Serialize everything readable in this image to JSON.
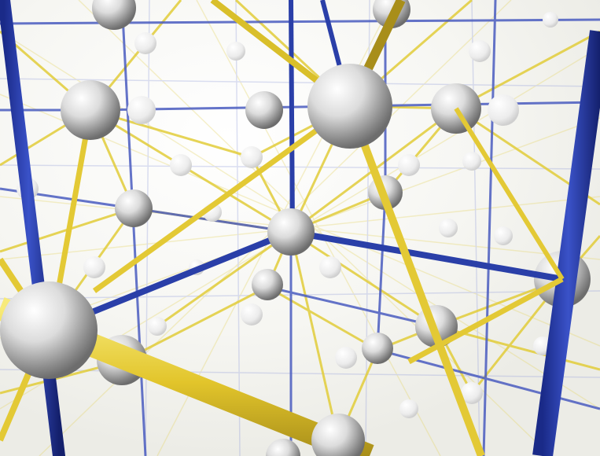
{
  "scene": {
    "description_visible_text": "",
    "palette": {
      "background": "#ffffff",
      "yellow_rod": "#e8d23a",
      "yellow_rod_dark": "#9a8420",
      "blue_rod": "#2a3fa8",
      "blue_rod_light": "#6a78c8",
      "atom_light": "#ffffff",
      "atom_mid": "#d9d9d9",
      "atom_dark": "#7a7a7a"
    }
  }
}
